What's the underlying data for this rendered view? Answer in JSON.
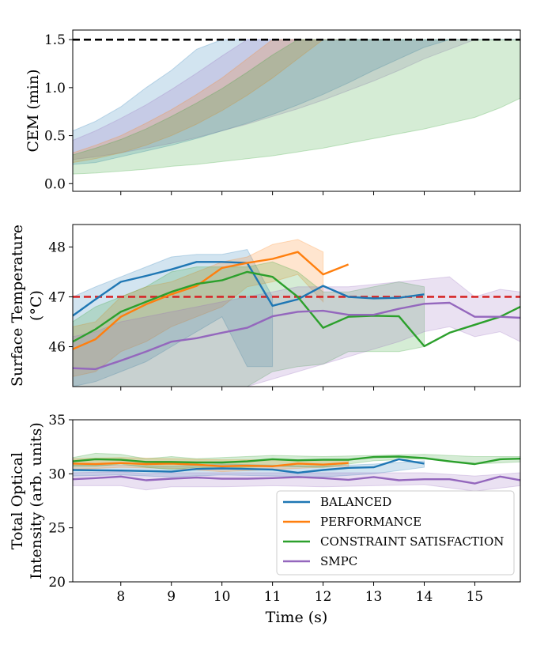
{
  "chart_data": [
    {
      "type": "area",
      "ylabel_lines": [
        "CEM (min)"
      ],
      "xlim": [
        7.05,
        15.9
      ],
      "ylim": [
        -0.08,
        1.6
      ],
      "y_ticks": [
        0.0,
        0.5,
        1.0,
        1.5
      ],
      "y_tick_labels": [
        "0.0",
        "0.5",
        "1.0",
        "1.5"
      ],
      "x_ticks": [
        8,
        9,
        10,
        11,
        12,
        13,
        14,
        15
      ],
      "reference_lines": [
        {
          "y": 1.5,
          "color": "#000000",
          "style": "dashed"
        }
      ],
      "bands": [
        {
          "color": "#1f77b4",
          "x": [
            7.05,
            7.5,
            8,
            8.5,
            9,
            9.5,
            10,
            10.5,
            11,
            11.5,
            12,
            12.5,
            13,
            13.5,
            14,
            14.5,
            15,
            15.5,
            15.9
          ],
          "upper": [
            0.55,
            0.65,
            0.8,
            1.0,
            1.18,
            1.4,
            1.5,
            1.5,
            1.5,
            1.5,
            1.5,
            1.5,
            1.5,
            1.5,
            1.5,
            1.5,
            1.5,
            1.5,
            1.5
          ],
          "lower": [
            0.2,
            0.22,
            0.28,
            0.34,
            0.4,
            0.47,
            0.55,
            0.63,
            0.72,
            0.82,
            0.93,
            1.05,
            1.18,
            1.3,
            1.42,
            1.5,
            1.5,
            1.5,
            1.5
          ]
        },
        {
          "color": "#9467bd",
          "x": [
            7.05,
            7.5,
            8,
            8.5,
            9,
            9.5,
            10,
            10.5,
            11,
            11.5,
            12,
            12.5,
            13,
            13.5,
            14,
            14.5,
            15,
            15.5,
            15.9
          ],
          "upper": [
            0.45,
            0.55,
            0.68,
            0.82,
            0.98,
            1.15,
            1.33,
            1.5,
            1.5,
            1.5,
            1.5,
            1.5,
            1.5,
            1.5,
            1.5,
            1.5,
            1.5,
            1.5,
            1.5
          ],
          "lower": [
            0.25,
            0.28,
            0.32,
            0.37,
            0.42,
            0.48,
            0.55,
            0.62,
            0.7,
            0.78,
            0.87,
            0.97,
            1.07,
            1.18,
            1.3,
            1.4,
            1.5,
            1.5,
            1.5
          ]
        },
        {
          "color": "#ff7f0e",
          "x": [
            7.05,
            7.5,
            8,
            8.5,
            9,
            9.5,
            10,
            10.5,
            11,
            11.5,
            12,
            12.5
          ],
          "upper": [
            0.32,
            0.4,
            0.5,
            0.63,
            0.77,
            0.93,
            1.1,
            1.3,
            1.5,
            1.5,
            1.5,
            1.5
          ],
          "lower": [
            0.22,
            0.26,
            0.32,
            0.4,
            0.5,
            0.62,
            0.76,
            0.92,
            1.1,
            1.3,
            1.5,
            1.5
          ]
        },
        {
          "color": "#2ca02c",
          "x": [
            7.05,
            7.5,
            8,
            8.5,
            9,
            9.5,
            10,
            10.5,
            11,
            11.5,
            12,
            12.5,
            13,
            13.5,
            14,
            14.5,
            15,
            15.5,
            15.9
          ],
          "upper": [
            0.3,
            0.37,
            0.46,
            0.57,
            0.7,
            0.84,
            0.99,
            1.16,
            1.34,
            1.5,
            1.5,
            1.5,
            1.5,
            1.5,
            1.5,
            1.5,
            1.5,
            1.5,
            1.5
          ],
          "lower": [
            0.1,
            0.11,
            0.13,
            0.15,
            0.18,
            0.2,
            0.23,
            0.26,
            0.29,
            0.33,
            0.37,
            0.42,
            0.47,
            0.52,
            0.57,
            0.63,
            0.69,
            0.79,
            0.89
          ]
        }
      ]
    },
    {
      "type": "line",
      "ylabel_lines": [
        "Surface Temperature",
        "(°C)"
      ],
      "xlim": [
        7.05,
        15.9
      ],
      "ylim": [
        45.2,
        48.45
      ],
      "y_ticks": [
        46,
        47,
        48
      ],
      "y_tick_labels": [
        "46",
        "47",
        "48"
      ],
      "x_ticks": [
        8,
        9,
        10,
        11,
        12,
        13,
        14,
        15
      ],
      "reference_lines": [
        {
          "y": 47.0,
          "color": "#d62728",
          "style": "dashed"
        }
      ],
      "bands": [
        {
          "color": "#1f77b4",
          "x": [
            7.05,
            7.5,
            8,
            8.5,
            9,
            9.5,
            10,
            10.5,
            11
          ],
          "upper": [
            47.0,
            47.2,
            47.4,
            47.6,
            47.8,
            47.85,
            47.85,
            47.95,
            47.0
          ],
          "lower": [
            45.2,
            45.3,
            45.5,
            45.7,
            46.0,
            46.3,
            46.6,
            45.6,
            45.6
          ]
        },
        {
          "color": "#ff7f0e",
          "x": [
            7.05,
            7.5,
            8,
            8.5,
            9,
            9.5,
            10,
            10.5,
            11,
            11.5,
            12
          ],
          "upper": [
            46.4,
            46.5,
            47.0,
            47.2,
            47.3,
            47.5,
            47.7,
            47.8,
            48.05,
            48.15,
            47.9
          ],
          "lower": [
            45.4,
            45.5,
            45.9,
            46.1,
            46.4,
            46.6,
            46.8,
            47.2,
            47.3,
            47.45,
            46.9
          ]
        },
        {
          "color": "#2ca02c",
          "x": [
            7.05,
            7.5,
            8,
            8.5,
            9,
            9.5,
            10,
            10.5,
            11,
            11.5,
            12,
            12.5,
            13,
            13.5,
            14
          ],
          "upper": [
            46.5,
            46.8,
            47.0,
            47.2,
            47.5,
            47.6,
            47.6,
            47.6,
            47.7,
            47.5,
            47.1,
            47.1,
            47.2,
            47.3,
            47.2
          ],
          "lower": [
            45.2,
            45.2,
            45.2,
            45.2,
            45.2,
            45.2,
            45.2,
            45.2,
            45.5,
            45.6,
            45.65,
            45.9,
            45.9,
            45.9,
            46.0
          ]
        },
        {
          "color": "#9467bd",
          "x": [
            7.05,
            7.5,
            8,
            8.5,
            9,
            9.5,
            10,
            10.5,
            11,
            11.5,
            12,
            12.5,
            13,
            13.5,
            14,
            14.5,
            15,
            15.5,
            15.9
          ],
          "upper": [
            46.2,
            46.3,
            46.5,
            46.6,
            46.7,
            46.8,
            46.9,
            47.0,
            47.1,
            47.2,
            47.2,
            47.2,
            47.25,
            47.3,
            47.35,
            47.4,
            47.0,
            47.15,
            47.1
          ],
          "lower": [
            45.2,
            45.2,
            45.2,
            45.2,
            45.2,
            45.2,
            45.2,
            45.2,
            45.35,
            45.5,
            45.65,
            45.8,
            45.95,
            46.1,
            46.3,
            46.4,
            46.2,
            46.3,
            46.1
          ]
        }
      ],
      "series": [
        {
          "name": "BALANCED",
          "color": "#1f77b4",
          "x": [
            7.05,
            7.5,
            8,
            8.5,
            9,
            9.5,
            10,
            10.5,
            11,
            11.5,
            12,
            12.5,
            13,
            13.5,
            14
          ],
          "y": [
            46.62,
            46.95,
            47.3,
            47.42,
            47.55,
            47.7,
            47.7,
            47.68,
            46.82,
            46.95,
            47.22,
            47.0,
            46.97,
            46.98,
            47.05
          ]
        },
        {
          "name": "PERFORMANCE",
          "color": "#ff7f0e",
          "x": [
            7.05,
            7.5,
            8,
            8.5,
            9,
            9.5,
            10,
            10.5,
            11,
            11.5,
            12,
            12.5
          ],
          "y": [
            45.95,
            46.15,
            46.6,
            46.85,
            47.05,
            47.22,
            47.58,
            47.68,
            47.76,
            47.9,
            47.45,
            47.65
          ]
        },
        {
          "name": "CONSTRAINT SATISFACTION",
          "color": "#2ca02c",
          "x": [
            7.05,
            7.5,
            8,
            8.5,
            9,
            9.5,
            10,
            10.5,
            11,
            11.5,
            12,
            12.5,
            13,
            13.5,
            14,
            14.5,
            15,
            15.5,
            15.9
          ],
          "y": [
            46.1,
            46.35,
            46.7,
            46.9,
            47.1,
            47.26,
            47.33,
            47.5,
            47.4,
            47.0,
            46.38,
            46.6,
            46.62,
            46.61,
            46.01,
            46.28,
            46.44,
            46.6,
            46.8
          ]
        },
        {
          "name": "SMPC",
          "color": "#9467bd",
          "x": [
            7.05,
            7.5,
            8,
            8.5,
            9,
            9.5,
            10,
            10.5,
            11,
            11.5,
            12,
            12.5,
            13,
            13.5,
            14,
            14.5,
            15,
            15.5,
            15.9
          ],
          "y": [
            45.57,
            45.55,
            45.72,
            45.9,
            46.1,
            46.17,
            46.28,
            46.38,
            46.61,
            46.7,
            46.72,
            46.64,
            46.64,
            46.76,
            46.86,
            46.88,
            46.6,
            46.6,
            46.58
          ]
        }
      ]
    },
    {
      "type": "line",
      "ylabel_lines": [
        "Total Optical",
        "Intensity (arb. units)"
      ],
      "xlabel": "Time (s)",
      "xlim": [
        7.05,
        15.9
      ],
      "ylim": [
        20,
        35
      ],
      "y_ticks": [
        20,
        25,
        30,
        35
      ],
      "y_tick_labels": [
        "20",
        "25",
        "30",
        "35"
      ],
      "x_ticks": [
        8,
        9,
        10,
        11,
        12,
        13,
        14,
        15
      ],
      "x_tick_labels": [
        "8",
        "9",
        "10",
        "11",
        "12",
        "13",
        "14",
        "15"
      ],
      "legend": {
        "position": "lower-right",
        "entries": [
          "BALANCED",
          "PERFORMANCE",
          "CONSTRAINT SATISFACTION",
          "SMPC"
        ]
      },
      "bands": [
        {
          "color": "#1f77b4",
          "x": [
            7.05,
            8,
            9,
            10,
            11,
            12,
            13,
            14
          ],
          "upper": [
            30.8,
            30.8,
            30.7,
            30.9,
            30.8,
            30.7,
            30.9,
            31.2
          ],
          "lower": [
            29.8,
            29.9,
            29.7,
            29.9,
            29.8,
            29.7,
            30.0,
            30.6
          ]
        },
        {
          "color": "#ff7f0e",
          "x": [
            7.05,
            8,
            9,
            10,
            11,
            12,
            12.5
          ],
          "upper": [
            31.4,
            31.5,
            31.4,
            31.3,
            31.3,
            31.3,
            31.3
          ],
          "lower": [
            30.4,
            30.6,
            30.5,
            30.2,
            30.4,
            30.6,
            30.7
          ]
        },
        {
          "color": "#2ca02c",
          "x": [
            7.05,
            7.5,
            8,
            8.5,
            9,
            9.5,
            10,
            11,
            12,
            13,
            14,
            15,
            15.9
          ],
          "upper": [
            31.5,
            31.9,
            31.8,
            31.4,
            31.6,
            31.4,
            31.5,
            31.7,
            31.6,
            31.7,
            31.8,
            31.6,
            31.6
          ],
          "lower": [
            30.7,
            30.7,
            30.9,
            30.6,
            30.4,
            30.6,
            30.5,
            30.7,
            30.6,
            31.2,
            31.4,
            30.9,
            31.1
          ]
        },
        {
          "color": "#9467bd",
          "x": [
            7.05,
            8,
            8.5,
            9,
            10,
            11,
            12,
            13,
            14,
            15,
            15.9
          ],
          "upper": [
            30.1,
            30.2,
            30.0,
            30.1,
            30.1,
            30.1,
            30.1,
            30.1,
            30.1,
            29.8,
            30.1
          ],
          "lower": [
            28.9,
            28.9,
            28.5,
            28.8,
            28.8,
            28.9,
            28.8,
            28.9,
            29.0,
            28.4,
            28.9
          ]
        }
      ],
      "series": [
        {
          "name": "BALANCED",
          "color": "#1f77b4",
          "x": [
            7.05,
            8,
            9,
            9.5,
            10,
            10.5,
            11,
            11.5,
            12,
            12.5,
            13,
            13.5,
            14
          ],
          "y": [
            30.35,
            30.3,
            30.2,
            30.45,
            30.5,
            30.45,
            30.4,
            30.1,
            30.35,
            30.55,
            30.6,
            31.35,
            30.95
          ]
        },
        {
          "name": "PERFORMANCE",
          "color": "#ff7f0e",
          "x": [
            7.05,
            7.5,
            8,
            8.5,
            9,
            9.5,
            10,
            10.5,
            11,
            11.5,
            12,
            12.5
          ],
          "y": [
            30.95,
            30.9,
            31.0,
            30.9,
            30.95,
            30.85,
            30.7,
            30.75,
            30.7,
            30.95,
            30.85,
            31.0
          ]
        },
        {
          "name": "CONSTRAINT SATISFACTION",
          "color": "#2ca02c",
          "x": [
            7.05,
            7.5,
            8,
            8.5,
            9,
            9.5,
            10,
            10.5,
            11,
            11.5,
            12,
            12.5,
            13,
            13.5,
            14,
            14.5,
            15,
            15.5,
            15.9
          ],
          "y": [
            31.15,
            31.35,
            31.3,
            31.1,
            31.1,
            31.05,
            31.05,
            31.15,
            31.35,
            31.25,
            31.3,
            31.3,
            31.55,
            31.6,
            31.45,
            31.15,
            30.9,
            31.35,
            31.4
          ]
        },
        {
          "name": "SMPC",
          "color": "#9467bd",
          "x": [
            7.05,
            7.5,
            8,
            8.5,
            9,
            9.5,
            10,
            10.5,
            11,
            11.5,
            12,
            12.5,
            13,
            13.5,
            14,
            14.5,
            15,
            15.5,
            15.9
          ],
          "y": [
            29.5,
            29.6,
            29.75,
            29.4,
            29.55,
            29.65,
            29.55,
            29.55,
            29.6,
            29.7,
            29.6,
            29.45,
            29.7,
            29.4,
            29.5,
            29.5,
            29.1,
            29.75,
            29.4
          ]
        }
      ]
    }
  ]
}
